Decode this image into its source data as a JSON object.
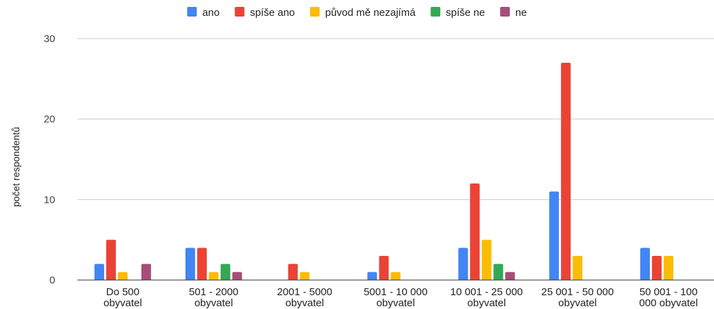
{
  "chart_data": {
    "type": "bar",
    "title": "",
    "xlabel": "",
    "ylabel": "počet respondentů",
    "ylim": [
      0,
      30
    ],
    "yticks": [
      "0",
      "10",
      "20",
      "30"
    ],
    "grid": true,
    "legend_position": "top",
    "categories": [
      [
        "Do 500",
        "obyvatel"
      ],
      [
        "501 - 2000",
        "obyvatel"
      ],
      [
        "2001 - 5000",
        "obyvatel"
      ],
      [
        "5001 - 10 000",
        "obyvatel"
      ],
      [
        "10 001 - 25 000",
        "obyvatel"
      ],
      [
        "25 001 - 50 000",
        "obyvatel"
      ],
      [
        "50 001 - 100",
        "000 obyvatel"
      ]
    ],
    "series": [
      {
        "name": "ano",
        "color": "#4285f4",
        "values": [
          2,
          4,
          0,
          1,
          4,
          11,
          4
        ]
      },
      {
        "name": "spíše ano",
        "color": "#ea4335",
        "values": [
          5,
          4,
          2,
          3,
          12,
          27,
          3
        ]
      },
      {
        "name": "původ mě nezajímá",
        "color": "#fbbc04",
        "values": [
          1,
          1,
          1,
          1,
          5,
          3,
          3
        ]
      },
      {
        "name": "spíše ne",
        "color": "#34a853",
        "values": [
          0,
          2,
          0,
          0,
          2,
          0,
          0
        ]
      },
      {
        "name": "ne",
        "color": "#a64d79",
        "values": [
          2,
          1,
          0,
          0,
          1,
          0,
          0
        ]
      }
    ]
  }
}
